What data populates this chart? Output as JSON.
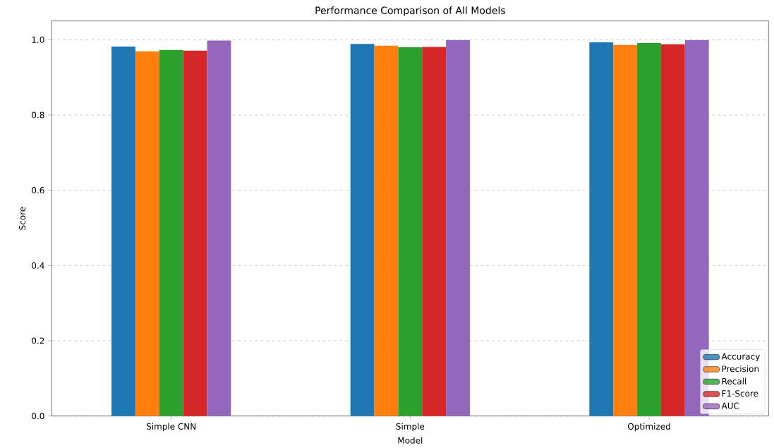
{
  "chart_data": {
    "type": "bar",
    "title": "Performance Comparison of All Models",
    "xlabel": "Model",
    "ylabel": "Score",
    "categories": [
      "Simple CNN",
      "Simple",
      "Optimized"
    ],
    "series": [
      {
        "name": "Accuracy",
        "color": "#1f77b4",
        "values": [
          0.982,
          0.989,
          0.993
        ]
      },
      {
        "name": "Precision",
        "color": "#ff7f0e",
        "values": [
          0.969,
          0.984,
          0.986
        ]
      },
      {
        "name": "Recall",
        "color": "#2ca02c",
        "values": [
          0.973,
          0.98,
          0.991
        ]
      },
      {
        "name": "F1-Score",
        "color": "#d62728",
        "values": [
          0.971,
          0.981,
          0.988
        ]
      },
      {
        "name": "AUC",
        "color": "#9467bd",
        "values": [
          0.998,
          0.999,
          0.999
        ]
      }
    ],
    "ylim": [
      0,
      1.05
    ],
    "yticks": [
      {
        "value": 0,
        "label": "0.0"
      },
      {
        "value": 0.2,
        "label": "0.2"
      },
      {
        "value": 0.4,
        "label": "0.4"
      },
      {
        "value": 0.6,
        "label": "0.6"
      },
      {
        "value": 0.8,
        "label": "0.8"
      },
      {
        "value": 1.0,
        "label": "1.0"
      }
    ],
    "grid": "y",
    "legend": "bottom right"
  }
}
